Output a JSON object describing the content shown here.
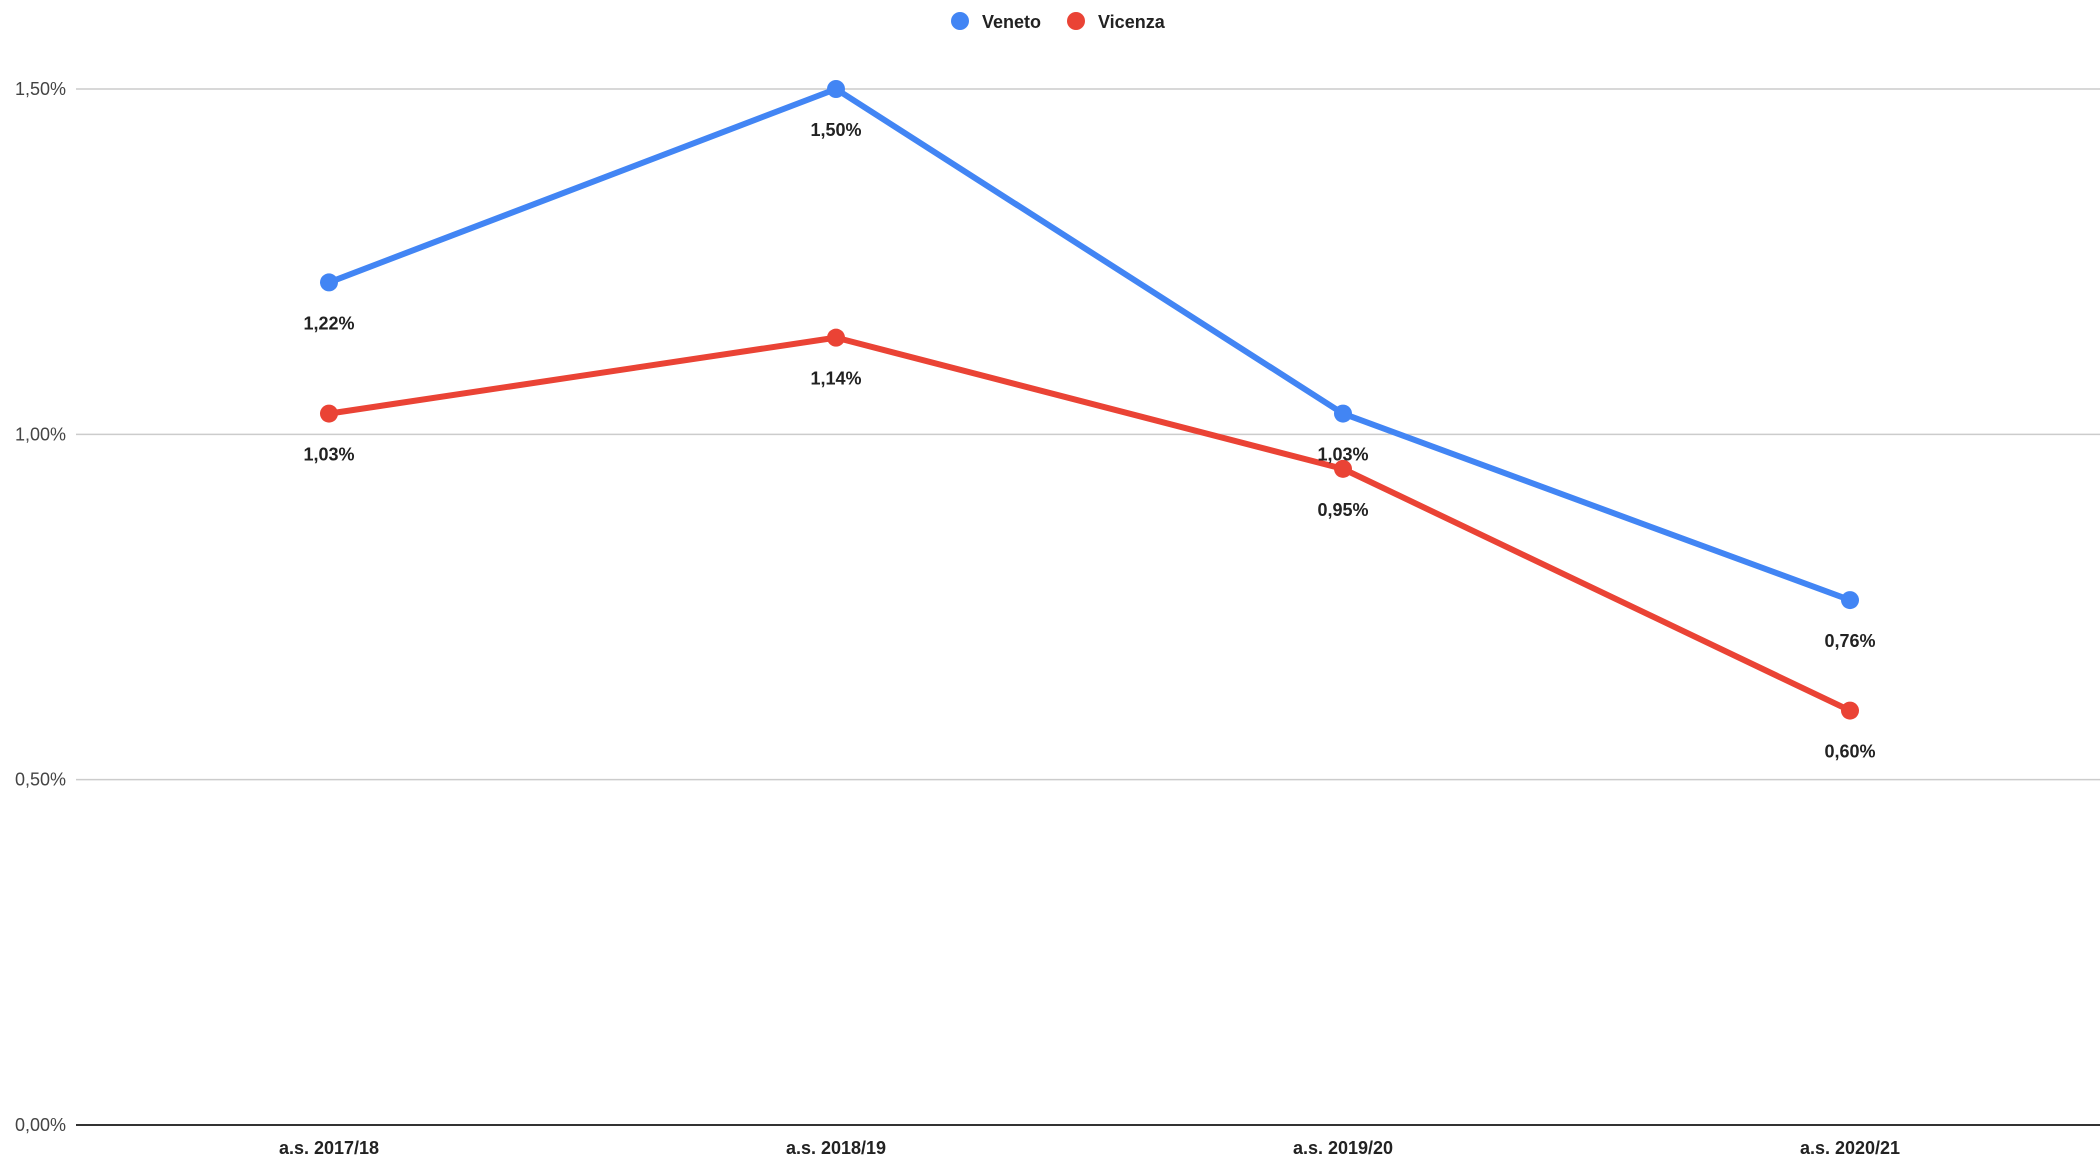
{
  "chart_data": {
    "type": "line",
    "categories": [
      "a.s. 2017/18",
      "a.s. 2018/19",
      "a.s. 2019/20",
      "a.s. 2020/21"
    ],
    "series": [
      {
        "name": "Veneto",
        "color": "#4285F4",
        "values": [
          1.22,
          1.5,
          1.03,
          0.76
        ],
        "labels": [
          "1,22%",
          "1,50%",
          "1,03%",
          "0,76%"
        ]
      },
      {
        "name": "Vicenza",
        "color": "#EA4335",
        "values": [
          1.03,
          1.14,
          0.95,
          0.6
        ],
        "labels": [
          "1,03%",
          "1,14%",
          "0,95%",
          "0,60%"
        ]
      }
    ],
    "y_ticks": [
      {
        "value": 0.0,
        "label": "0,00%"
      },
      {
        "value": 0.5,
        "label": "0,50%"
      },
      {
        "value": 1.0,
        "label": "1,00%"
      },
      {
        "value": 1.5,
        "label": "1,50%"
      }
    ],
    "ylim": [
      0,
      1.5
    ],
    "grid": true,
    "legend_position": "top-center",
    "title": "",
    "xlabel": "",
    "ylabel": ""
  }
}
